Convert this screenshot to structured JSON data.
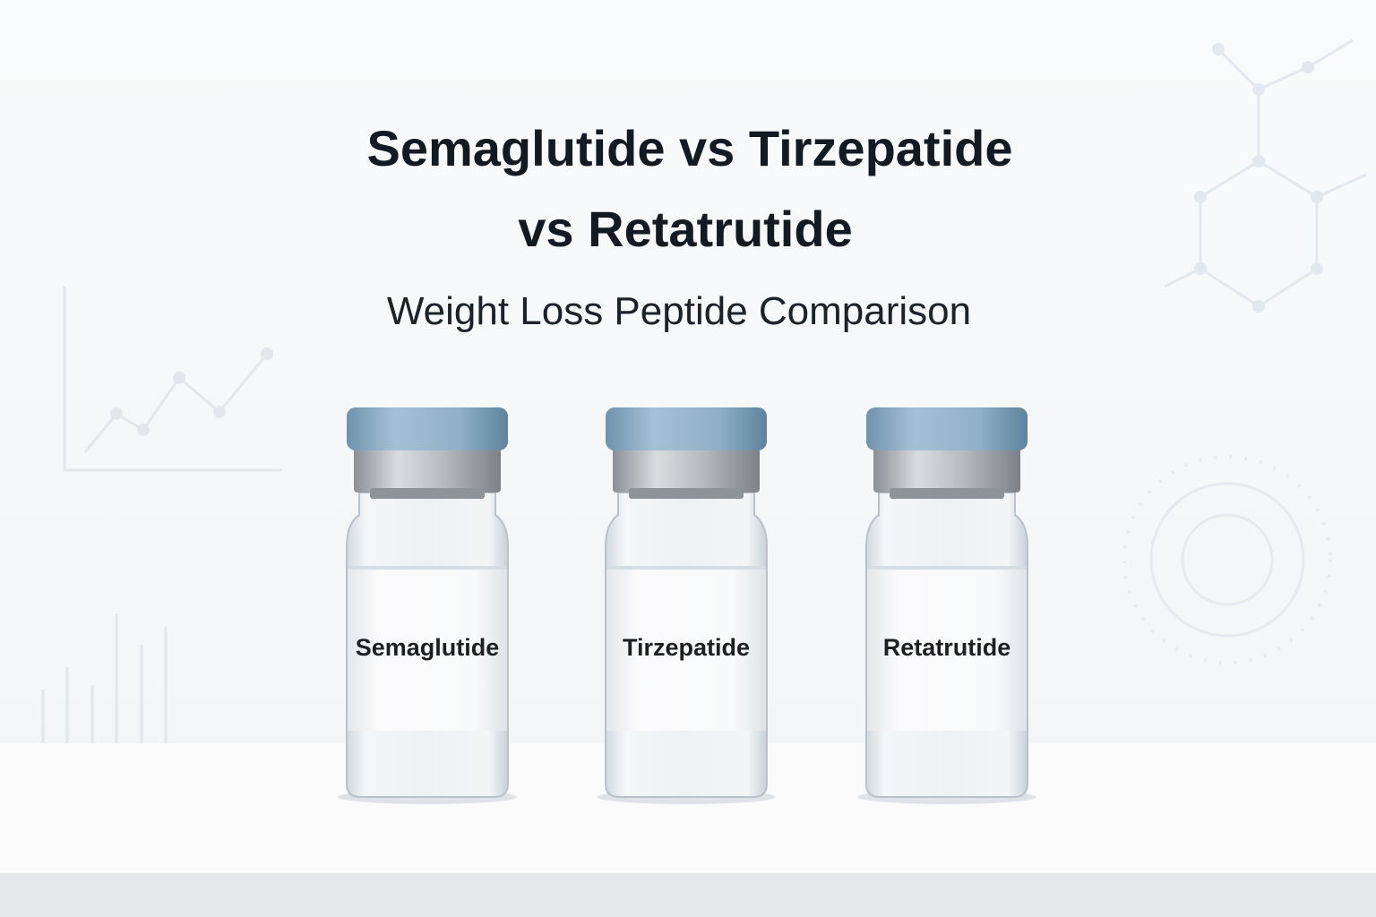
{
  "header": {
    "title_lines": [
      "Semaglutide vs Tirzepatide",
      "vs Retatrutide"
    ],
    "subtitle": "Weight Loss Peptide Comparison"
  },
  "vials": [
    {
      "label": "Semaglutide"
    },
    {
      "label": "Tirzepatide"
    },
    {
      "label": "Retatrutide"
    }
  ]
}
